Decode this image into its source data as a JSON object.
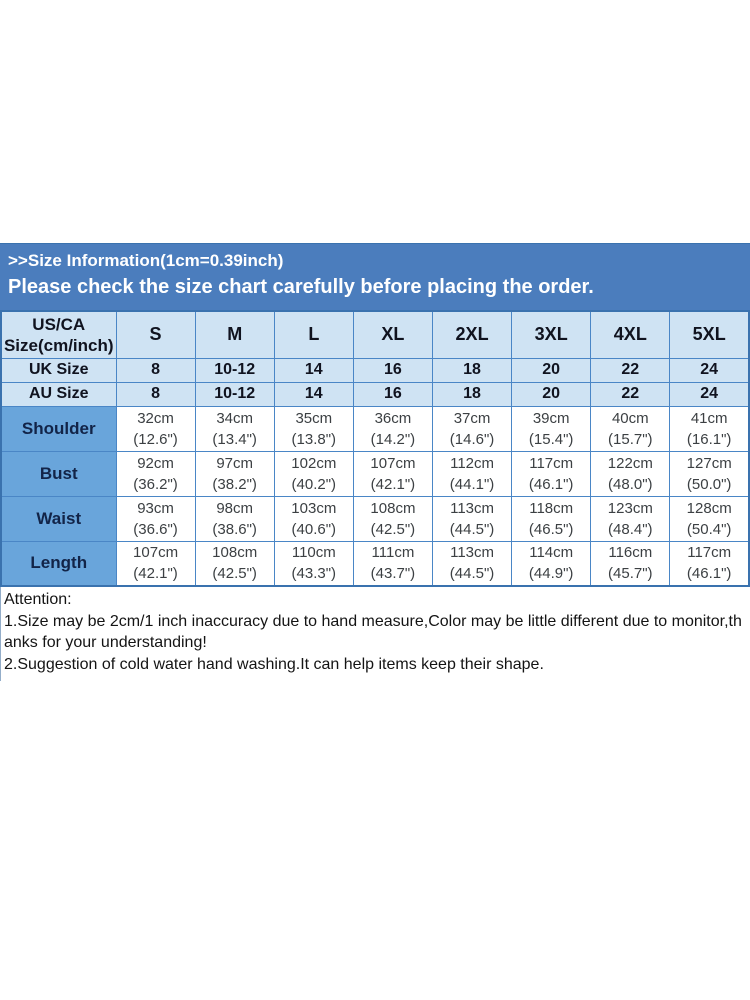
{
  "banner": {
    "title": ">>Size Information(1cm=0.39inch)",
    "subtitle": "Please check the size chart carefully before placing the order."
  },
  "table": {
    "corner_label_lines": [
      "US/CA",
      "Size(cm/inch)"
    ],
    "sizes": [
      "S",
      "M",
      "L",
      "XL",
      "2XL",
      "3XL",
      "4XL",
      "5XL"
    ],
    "uk_row": {
      "label": "UK Size",
      "values": [
        "8",
        "10-12",
        "14",
        "16",
        "18",
        "20",
        "22",
        "24"
      ]
    },
    "au_row": {
      "label": "AU Size",
      "values": [
        "8",
        "10-12",
        "14",
        "16",
        "18",
        "20",
        "22",
        "24"
      ]
    },
    "measurements": [
      {
        "label": "Shoulder",
        "values": [
          {
            "cm": "32cm",
            "inch": "(12.6\")"
          },
          {
            "cm": "34cm",
            "inch": "(13.4\")"
          },
          {
            "cm": "35cm",
            "inch": "(13.8\")"
          },
          {
            "cm": "36cm",
            "inch": "(14.2\")"
          },
          {
            "cm": "37cm",
            "inch": "(14.6\")"
          },
          {
            "cm": "39cm",
            "inch": "(15.4\")"
          },
          {
            "cm": "40cm",
            "inch": "(15.7\")"
          },
          {
            "cm": "41cm",
            "inch": "(16.1\")"
          }
        ]
      },
      {
        "label": "Bust",
        "values": [
          {
            "cm": "92cm",
            "inch": "(36.2\")"
          },
          {
            "cm": "97cm",
            "inch": "(38.2\")"
          },
          {
            "cm": "102cm",
            "inch": "(40.2\")"
          },
          {
            "cm": "107cm",
            "inch": "(42.1\")"
          },
          {
            "cm": "112cm",
            "inch": "(44.1\")"
          },
          {
            "cm": "117cm",
            "inch": "(46.1\")"
          },
          {
            "cm": "122cm",
            "inch": "(48.0\")"
          },
          {
            "cm": "127cm",
            "inch": "(50.0\")"
          }
        ]
      },
      {
        "label": "Waist",
        "values": [
          {
            "cm": "93cm",
            "inch": "(36.6\")"
          },
          {
            "cm": "98cm",
            "inch": "(38.6\")"
          },
          {
            "cm": "103cm",
            "inch": "(40.6\")"
          },
          {
            "cm": "108cm",
            "inch": "(42.5\")"
          },
          {
            "cm": "113cm",
            "inch": "(44.5\")"
          },
          {
            "cm": "118cm",
            "inch": "(46.5\")"
          },
          {
            "cm": "123cm",
            "inch": "(48.4\")"
          },
          {
            "cm": "128cm",
            "inch": "(50.4\")"
          }
        ]
      },
      {
        "label": "Length",
        "values": [
          {
            "cm": "107cm",
            "inch": "(42.1\")"
          },
          {
            "cm": "108cm",
            "inch": "(42.5\")"
          },
          {
            "cm": "110cm",
            "inch": "(43.3\")"
          },
          {
            "cm": "111cm",
            "inch": "(43.7\")"
          },
          {
            "cm": "113cm",
            "inch": "(44.5\")"
          },
          {
            "cm": "114cm",
            "inch": "(44.9\")"
          },
          {
            "cm": "116cm",
            "inch": "(45.7\")"
          },
          {
            "cm": "117cm",
            "inch": "(46.1\")"
          }
        ]
      }
    ]
  },
  "attention": {
    "heading": "Attention:",
    "items": [
      "1.Size may be 2cm/1 inch inaccuracy due to hand measure,Color may be little different due to monitor,thanks for your understanding!",
      "2.Suggestion of cold water hand washing.It can help items keep their shape."
    ]
  },
  "colors": {
    "banner_bg": "#4b7dbd",
    "banner_text": "#ffffff",
    "header_bg": "#cfe3f3",
    "label_bg": "#69a5db",
    "grid_border": "#4a86c6",
    "outer_border": "#3a72ae",
    "header_text": "#10131f",
    "label_text": "#122448",
    "data_text": "#3c4043",
    "attn_text": "#141414",
    "attn_border": "#93adc9"
  }
}
